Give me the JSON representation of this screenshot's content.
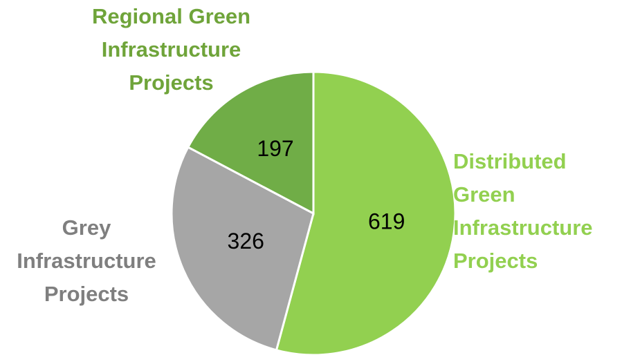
{
  "chart_data": {
    "type": "pie",
    "categories": [
      "Distributed Green Infrastructure Projects",
      "Grey Infrastructure Projects",
      "Regional Green Infrastructure Projects"
    ],
    "values": [
      619,
      326,
      197
    ],
    "colors": [
      "#92d050",
      "#a6a6a6",
      "#70ad47"
    ],
    "label_colors": [
      "#92d050",
      "#7f7f7f",
      "#6fa43a"
    ]
  }
}
